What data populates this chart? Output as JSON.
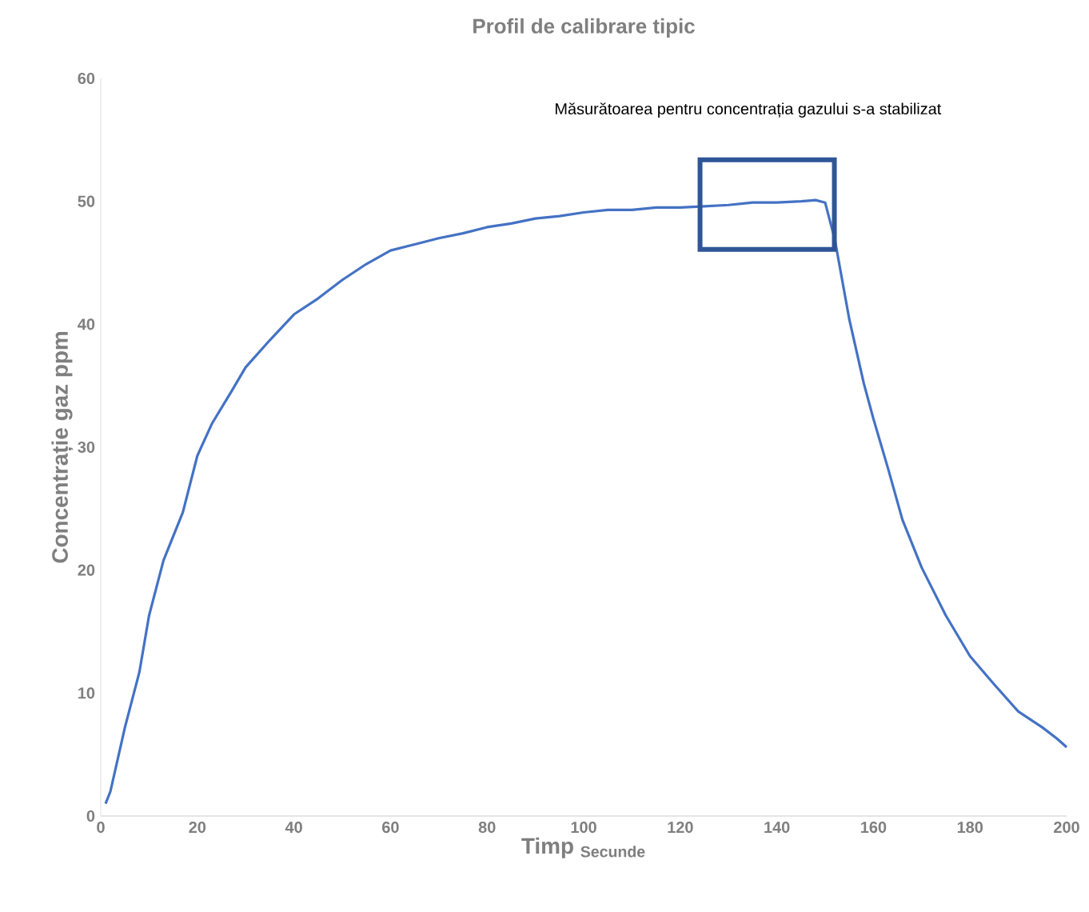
{
  "chart_data": {
    "type": "line",
    "title": "Profil de calibrare tipic",
    "xlabel": "Timp $_{Secunde}$",
    "ylabel": "Concentrație gaz ppm",
    "xlim": [
      0,
      200
    ],
    "ylim": [
      0,
      60
    ],
    "xticks": [
      0,
      20,
      40,
      60,
      80,
      100,
      120,
      140,
      160,
      180,
      200
    ],
    "yticks": [
      0,
      10,
      20,
      30,
      40,
      50,
      60
    ],
    "grid": false,
    "marker": "none",
    "line_style": "solid",
    "annotations": [
      "Măsurătoarea pentru concentrația gazului s-a stabilizat"
    ],
    "series": [
      {
        "color": "#4472c4",
        "x": [
          1,
          2,
          5,
          8,
          10,
          13,
          17,
          20,
          23,
          27,
          30,
          35,
          40,
          45,
          50,
          55,
          60,
          65,
          70,
          75,
          80,
          85,
          90,
          95,
          100,
          105,
          110,
          115,
          120,
          125,
          130,
          135,
          140,
          145,
          148,
          150,
          152,
          155,
          158,
          160,
          163,
          166,
          170,
          175,
          180,
          185,
          190,
          195,
          198,
          200
        ],
        "values": [
          1,
          2,
          7.2,
          11.7,
          16.3,
          20.8,
          24.7,
          29.3,
          31.9,
          34.5,
          36.5,
          38.7,
          40.8,
          42.1,
          43.6,
          44.9,
          46,
          46.5,
          47,
          47.4,
          47.9,
          48.2,
          48.6,
          48.8,
          49.1,
          49.3,
          49.3,
          49.5,
          49.5,
          49.6,
          49.7,
          49.9,
          49.9,
          50,
          50.1,
          49.9,
          46.9,
          40.4,
          35.2,
          32.3,
          28.3,
          24.1,
          20.2,
          16.3,
          13,
          10.7,
          8.5,
          7.2,
          6.3,
          5.6
        ]
      }
    ]
  }
}
